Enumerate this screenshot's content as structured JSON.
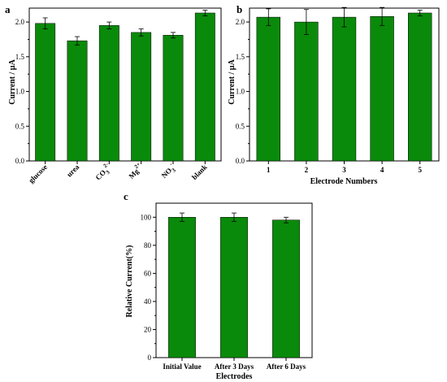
{
  "chart_data": [
    {
      "panel": "a",
      "type": "bar",
      "categories": [
        "glucose",
        "urea",
        "CO3^2-",
        "Mg^2+",
        "NO3^-",
        "blank"
      ],
      "values": [
        1.98,
        1.73,
        1.95,
        1.85,
        1.81,
        2.13
      ],
      "errors": [
        0.08,
        0.06,
        0.05,
        0.05,
        0.04,
        0.04
      ],
      "ylabel": "Current / µA",
      "xlabel": "",
      "ylim": [
        0,
        2.2
      ],
      "yticks": [
        0.0,
        0.5,
        1.0,
        1.5,
        2.0
      ],
      "ytick_labels": [
        "0.0",
        "0.5",
        "1.0",
        "1.5",
        "2.0"
      ],
      "color": "#0a8a0a",
      "grid": false,
      "legend": "none"
    },
    {
      "panel": "b",
      "type": "bar",
      "categories": [
        "1",
        "2",
        "3",
        "4",
        "5"
      ],
      "values": [
        2.07,
        2.0,
        2.07,
        2.08,
        2.13
      ],
      "errors": [
        0.12,
        0.18,
        0.14,
        0.13,
        0.04
      ],
      "ylabel": "Current / µA",
      "xlabel": "Electrode Numbers",
      "ylim": [
        0,
        2.2
      ],
      "yticks": [
        0.0,
        0.5,
        1.0,
        1.5,
        2.0
      ],
      "ytick_labels": [
        "0.0",
        "0.5",
        "1.0",
        "1.5",
        "2.0"
      ],
      "color": "#0a8a0a",
      "grid": false,
      "legend": "none"
    },
    {
      "panel": "c",
      "type": "bar",
      "categories": [
        "Initial Value",
        "After 3 Days",
        "After 6 Days"
      ],
      "values": [
        100,
        100,
        98
      ],
      "errors": [
        3,
        3,
        2
      ],
      "ylabel": "Relative Current(%)",
      "xlabel": "Electrodes",
      "ylim": [
        0,
        110
      ],
      "yticks": [
        0,
        20,
        40,
        60,
        80,
        100
      ],
      "ytick_labels": [
        "0",
        "20",
        "40",
        "60",
        "80",
        "100"
      ],
      "color": "#0a8a0a",
      "grid": false,
      "legend": "none"
    }
  ]
}
